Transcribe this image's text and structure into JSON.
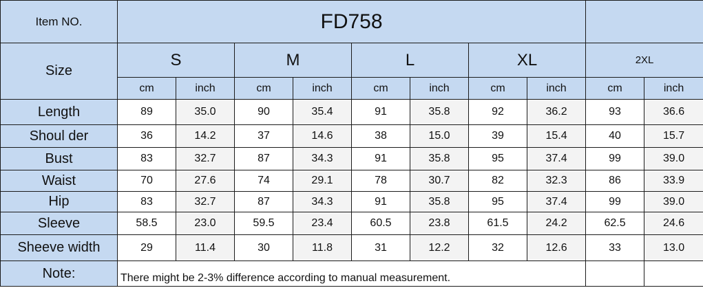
{
  "item_label": "Item NO.",
  "item_value": "FD758",
  "size_label": "Size",
  "sizes": [
    "S",
    "M",
    "L",
    "XL",
    "2XL"
  ],
  "units": [
    "cm",
    "inch"
  ],
  "rows": [
    {
      "label": "Length",
      "values": [
        "89",
        "35.0",
        "90",
        "35.4",
        "91",
        "35.8",
        "92",
        "36.2",
        "93",
        "36.6"
      ]
    },
    {
      "label": "Shoul der",
      "values": [
        "36",
        "14.2",
        "37",
        "14.6",
        "38",
        "15.0",
        "39",
        "15.4",
        "40",
        "15.7"
      ]
    },
    {
      "label": "Bust",
      "values": [
        "83",
        "32.7",
        "87",
        "34.3",
        "91",
        "35.8",
        "95",
        "37.4",
        "99",
        "39.0"
      ]
    },
    {
      "label": "Waist",
      "values": [
        "70",
        "27.6",
        "74",
        "29.1",
        "78",
        "30.7",
        "82",
        "32.3",
        "86",
        "33.9"
      ]
    },
    {
      "label": "Hip",
      "values": [
        "83",
        "32.7",
        "87",
        "34.3",
        "91",
        "35.8",
        "95",
        "37.4",
        "99",
        "39.0"
      ]
    },
    {
      "label": "Sleeve",
      "values": [
        "58.5",
        "23.0",
        "59.5",
        "23.4",
        "60.5",
        "23.8",
        "61.5",
        "24.2",
        "62.5",
        "24.6"
      ]
    },
    {
      "label": "Sheeve  width",
      "values": [
        "29",
        "11.4",
        "30",
        "11.8",
        "31",
        "12.2",
        "32",
        "12.6",
        "33",
        "13.0"
      ]
    }
  ],
  "note_label": "Note:",
  "note_text": "There might be 2-3% difference according to manual measurement."
}
